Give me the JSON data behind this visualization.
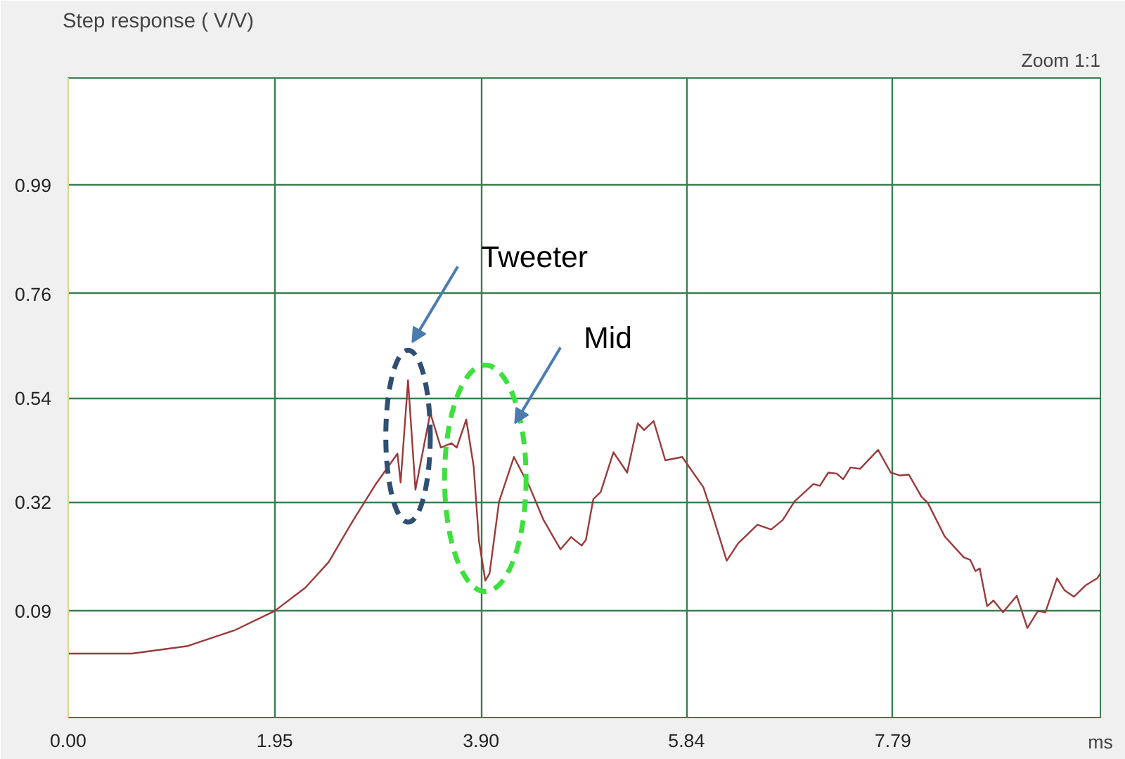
{
  "chart_data": {
    "type": "line",
    "title": "Step response ( V/V)",
    "xlabel": "ms",
    "annotations": [
      "Zoom 1:1",
      "Tweeter",
      "Mid"
    ],
    "xlim": [
      0,
      9.75
    ],
    "ylim": [
      -0.135,
      1.215
    ],
    "xticks": [
      {
        "value": 0,
        "label": "0.00"
      },
      1.95,
      {
        "value": 3.9,
        "label": "3.90"
      },
      5.84,
      7.79
    ],
    "yticks": [
      0.09,
      0.32,
      0.54,
      0.76,
      0.99
    ],
    "grid": true,
    "marker": "none",
    "line_style": "solid",
    "series": [
      {
        "color": "#9b3a3a",
        "x": [
          0,
          0.6,
          1.13,
          1.57,
          1.95,
          2.24,
          2.46,
          2.68,
          2.9,
          3.11,
          3.14,
          3.21,
          3.28,
          3.42,
          3.52,
          3.62,
          3.67,
          3.76,
          3.83,
          3.88,
          3.94,
          3.98,
          4.07,
          4.21,
          4.36,
          4.49,
          4.65,
          4.75,
          4.85,
          4.89,
          4.96,
          5.03,
          5.15,
          5.28,
          5.38,
          5.44,
          5.53,
          5.64,
          5.8,
          6.0,
          6.08,
          6.22,
          6.33,
          6.51,
          6.64,
          6.75,
          6.86,
          7.04,
          7.1,
          7.18,
          7.26,
          7.32,
          7.39,
          7.48,
          7.65,
          7.77,
          7.86,
          7.94,
          8.06,
          8.12,
          8.28,
          8.46,
          8.52,
          8.57,
          8.61,
          8.68,
          8.74,
          8.83,
          8.96,
          9.06,
          9.16,
          9.23,
          9.34,
          9.41,
          9.5,
          9.61,
          9.72,
          9.75
        ],
        "values": [
          0.0,
          0.0,
          0.016,
          0.049,
          0.09,
          0.139,
          0.193,
          0.277,
          0.356,
          0.422,
          0.361,
          0.577,
          0.346,
          0.508,
          0.435,
          0.444,
          0.435,
          0.494,
          0.395,
          0.238,
          0.154,
          0.169,
          0.321,
          0.415,
          0.351,
          0.282,
          0.22,
          0.246,
          0.228,
          0.24,
          0.326,
          0.341,
          0.425,
          0.382,
          0.486,
          0.472,
          0.491,
          0.408,
          0.415,
          0.351,
          0.297,
          0.196,
          0.233,
          0.272,
          0.262,
          0.282,
          0.321,
          0.358,
          0.354,
          0.382,
          0.38,
          0.368,
          0.393,
          0.39,
          0.43,
          0.382,
          0.376,
          0.378,
          0.331,
          0.318,
          0.247,
          0.203,
          0.198,
          0.174,
          0.18,
          0.1,
          0.112,
          0.087,
          0.122,
          0.054,
          0.09,
          0.087,
          0.159,
          0.134,
          0.12,
          0.144,
          0.159,
          0.169
        ]
      }
    ]
  }
}
